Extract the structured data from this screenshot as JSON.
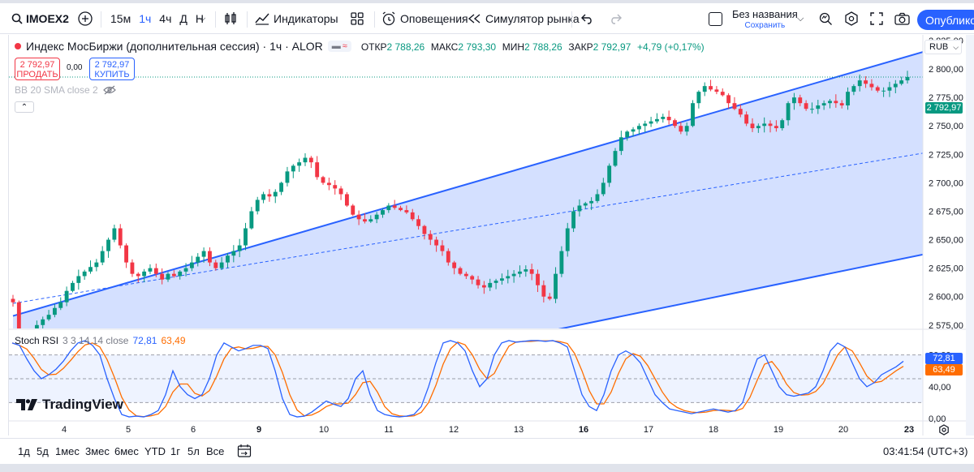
{
  "toolbar": {
    "symbol": "IMOEX2",
    "timeframes": [
      {
        "label": "15м",
        "active": false
      },
      {
        "label": "1ч",
        "active": true
      },
      {
        "label": "4ч",
        "active": false
      },
      {
        "label": "Д",
        "active": false
      },
      {
        "label": "Н",
        "active": false
      }
    ],
    "indicators_label": "Индикаторы",
    "alerts_label": "Оповещения",
    "simulator_label": "Симулятор рынка",
    "layout_name": "Без названия",
    "layout_save": "Сохранить",
    "publish_label": "Опубликов"
  },
  "legend": {
    "title": "Индекс МосБиржи (дополнительная сессия) · 1ч · ALOR",
    "open_k": "ОТКР",
    "open_v": "2 788,26",
    "high_k": "МАКС",
    "high_v": "2 793,30",
    "low_k": "МИН",
    "low_v": "2 788,26",
    "close_k": "ЗАКР",
    "close_v": "2 792,97",
    "change": "+4,79 (+0,17%)",
    "mode_1": "▬",
    "mode_2": "≈"
  },
  "trade": {
    "sell_price": "2 792,97",
    "sell_label": "ПРОДАТЬ",
    "spread": "0,00",
    "buy_price": "2 792,97",
    "buy_label": "КУПИТЬ"
  },
  "bb_legend": "BB 20 SMA close 2",
  "stoch": {
    "name": "Stoch RSI",
    "params": "3 3 14 14 close",
    "k_value": "72,81",
    "d_value": "63,49"
  },
  "currency": "RUB",
  "price_axis": [
    "2 825,00",
    "2 800,00",
    "2 775,00",
    "2 750,00",
    "2 725,00",
    "2 700,00",
    "2 675,00",
    "2 650,00",
    "2 625,00",
    "2 600,00",
    "2 575,00"
  ],
  "last_price": "2 792,97",
  "stoch_axis": [
    "80,00",
    "40,00",
    "0,00"
  ],
  "stoch_badges": {
    "k": "72,81",
    "d": "63,49"
  },
  "time_axis": [
    {
      "label": "4",
      "bold": false
    },
    {
      "label": "5",
      "bold": false
    },
    {
      "label": "6",
      "bold": false
    },
    {
      "label": "9",
      "bold": true
    },
    {
      "label": "10",
      "bold": false
    },
    {
      "label": "11",
      "bold": false
    },
    {
      "label": "12",
      "bold": false
    },
    {
      "label": "13",
      "bold": false
    },
    {
      "label": "16",
      "bold": true
    },
    {
      "label": "17",
      "bold": false
    },
    {
      "label": "18",
      "bold": false
    },
    {
      "label": "19",
      "bold": false
    },
    {
      "label": "20",
      "bold": false
    },
    {
      "label": "23",
      "bold": true
    }
  ],
  "ranges": [
    "1д",
    "5д",
    "1мес",
    "3мес",
    "6мес",
    "YTD",
    "1г",
    "5л",
    "Все"
  ],
  "clock": "03:41:54 (UTC+3)",
  "logo_text": "TradingView",
  "colors": {
    "up": "#089981",
    "down": "#f23645",
    "channel": "#2962ff",
    "k": "#2962ff",
    "d": "#ff6d00"
  },
  "chart_data": {
    "type": "candlestick",
    "symbol": "IMOEX2",
    "interval": "1ч",
    "y_range": [
      2572,
      2830
    ],
    "closes": [
      2595,
      2560,
      2565,
      2570,
      2575,
      2580,
      2584,
      2590,
      2595,
      2605,
      2612,
      2618,
      2622,
      2626,
      2630,
      2640,
      2650,
      2660,
      2645,
      2630,
      2620,
      2618,
      2622,
      2625,
      2620,
      2615,
      2620,
      2618,
      2622,
      2625,
      2630,
      2635,
      2640,
      2630,
      2625,
      2630,
      2636,
      2640,
      2645,
      2660,
      2675,
      2685,
      2690,
      2688,
      2692,
      2700,
      2710,
      2715,
      2718,
      2722,
      2718,
      2705,
      2700,
      2698,
      2695,
      2690,
      2680,
      2672,
      2668,
      2666,
      2668,
      2672,
      2676,
      2680,
      2678,
      2676,
      2674,
      2668,
      2662,
      2655,
      2650,
      2645,
      2640,
      2630,
      2625,
      2620,
      2618,
      2615,
      2610,
      2608,
      2612,
      2614,
      2616,
      2618,
      2620,
      2622,
      2624,
      2620,
      2610,
      2600,
      2598,
      2620,
      2640,
      2660,
      2675,
      2680,
      2682,
      2684,
      2690,
      2700,
      2715,
      2728,
      2740,
      2745,
      2747,
      2750,
      2752,
      2754,
      2756,
      2758,
      2755,
      2750,
      2745,
      2750,
      2770,
      2780,
      2785,
      2782,
      2780,
      2777,
      2770,
      2765,
      2760,
      2752,
      2748,
      2750,
      2752,
      2750,
      2748,
      2755,
      2770,
      2775,
      2770,
      2765,
      2765,
      2768,
      2770,
      2772,
      2770,
      2768,
      2780,
      2785,
      2790,
      2787,
      2784,
      2781,
      2781,
      2784,
      2787,
      2790,
      2793
    ],
    "channel": {
      "upper": [
        [
          0,
          2583
        ],
        [
          150,
          2815
        ]
      ],
      "mid": [
        [
          0,
          2594
        ],
        [
          150,
          2726
        ]
      ],
      "lower": [
        [
          0,
          2473
        ],
        [
          150,
          2637
        ]
      ]
    },
    "stoch_rsi": {
      "k_last": 72.81,
      "d_last": 63.49,
      "levels": [
        80,
        50,
        20
      ],
      "y_range": [
        0,
        100
      ]
    }
  }
}
